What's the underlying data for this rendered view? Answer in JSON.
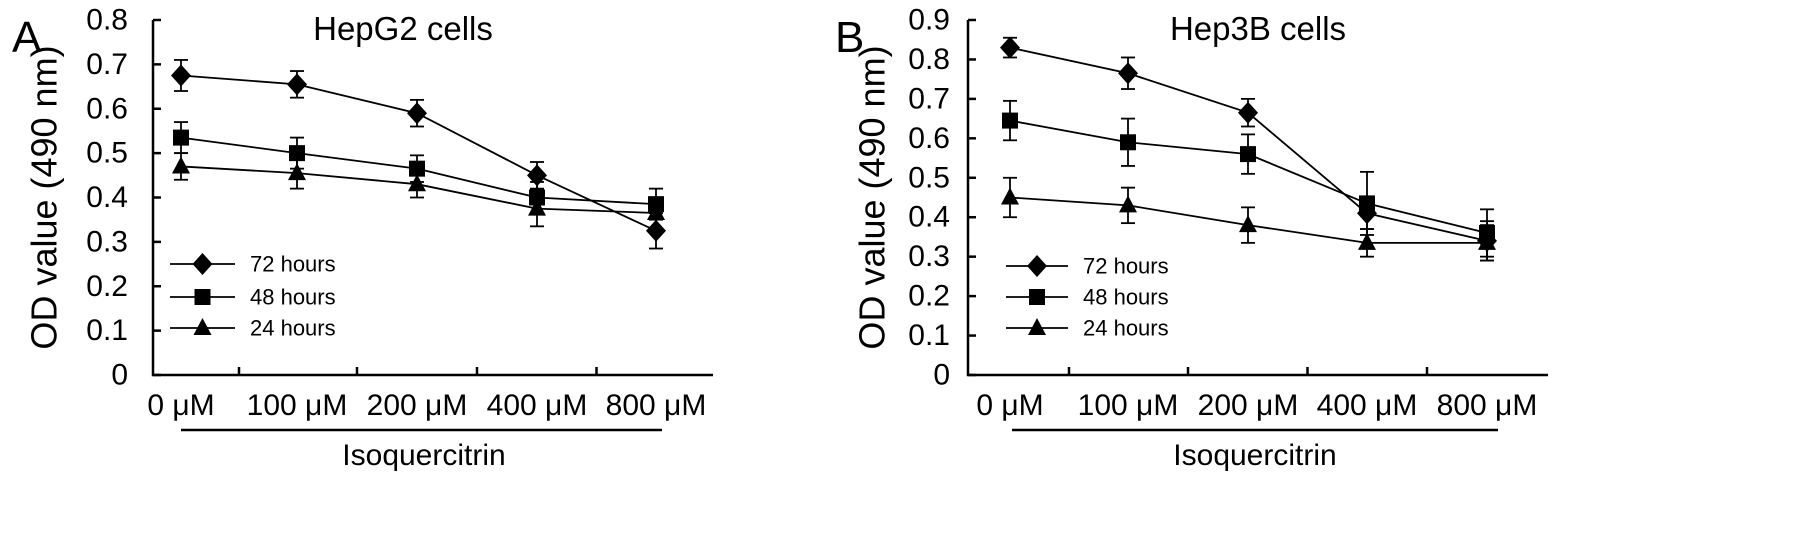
{
  "figure": {
    "panels": [
      {
        "letter": "A",
        "chart_data": {
          "type": "line",
          "title": "HepG2 cells",
          "ylabel": "OD value (490 nm)",
          "xlabel": "Isoquercitrin",
          "categories": [
            "0 μM",
            "100 μM",
            "200 μM",
            "400 μM",
            "800 μM"
          ],
          "ylim": [
            0,
            0.8
          ],
          "yticks": [
            "0",
            "0.1",
            "0.2",
            "0.3",
            "0.4",
            "0.5",
            "0.6",
            "0.7",
            "0.8"
          ],
          "grid": false,
          "legend_position": "bottom-left",
          "series": [
            {
              "name": "72 hours",
              "marker": "diamond",
              "values": [
                0.675,
                0.655,
                0.59,
                0.45,
                0.325
              ],
              "errors": [
                0.035,
                0.03,
                0.03,
                0.03,
                0.04
              ]
            },
            {
              "name": "48 hours",
              "marker": "square",
              "values": [
                0.535,
                0.5,
                0.465,
                0.4,
                0.385
              ],
              "errors": [
                0.035,
                0.035,
                0.03,
                0.035,
                0.035
              ]
            },
            {
              "name": "24 hours",
              "marker": "triangle",
              "values": [
                0.47,
                0.455,
                0.43,
                0.375,
                0.365
              ],
              "errors": [
                0.03,
                0.035,
                0.03,
                0.04,
                0.035
              ]
            }
          ]
        }
      },
      {
        "letter": "B",
        "chart_data": {
          "type": "line",
          "title": "Hep3B cells",
          "ylabel": "OD value (490 nm)",
          "xlabel": "Isoquercitrin",
          "categories": [
            "0 μM",
            "100 μM",
            "200 μM",
            "400 μM",
            "800 μM"
          ],
          "ylim": [
            0,
            0.9
          ],
          "yticks": [
            "0",
            "0.1",
            "0.2",
            "0.3",
            "0.4",
            "0.5",
            "0.6",
            "0.7",
            "0.8",
            "0.9"
          ],
          "grid": false,
          "legend_position": "bottom-left",
          "series": [
            {
              "name": "72 hours",
              "marker": "diamond",
              "values": [
                0.83,
                0.765,
                0.665,
                0.41,
                0.34
              ],
              "errors": [
                0.025,
                0.04,
                0.035,
                0.04,
                0.05
              ]
            },
            {
              "name": "48 hours",
              "marker": "square",
              "values": [
                0.645,
                0.59,
                0.56,
                0.435,
                0.36
              ],
              "errors": [
                0.05,
                0.06,
                0.05,
                0.08,
                0.06
              ]
            },
            {
              "name": "24 hours",
              "marker": "triangle",
              "values": [
                0.45,
                0.43,
                0.38,
                0.335,
                0.335
              ],
              "errors": [
                0.05,
                0.045,
                0.045,
                0.035,
                0.045
              ]
            }
          ]
        }
      }
    ]
  }
}
